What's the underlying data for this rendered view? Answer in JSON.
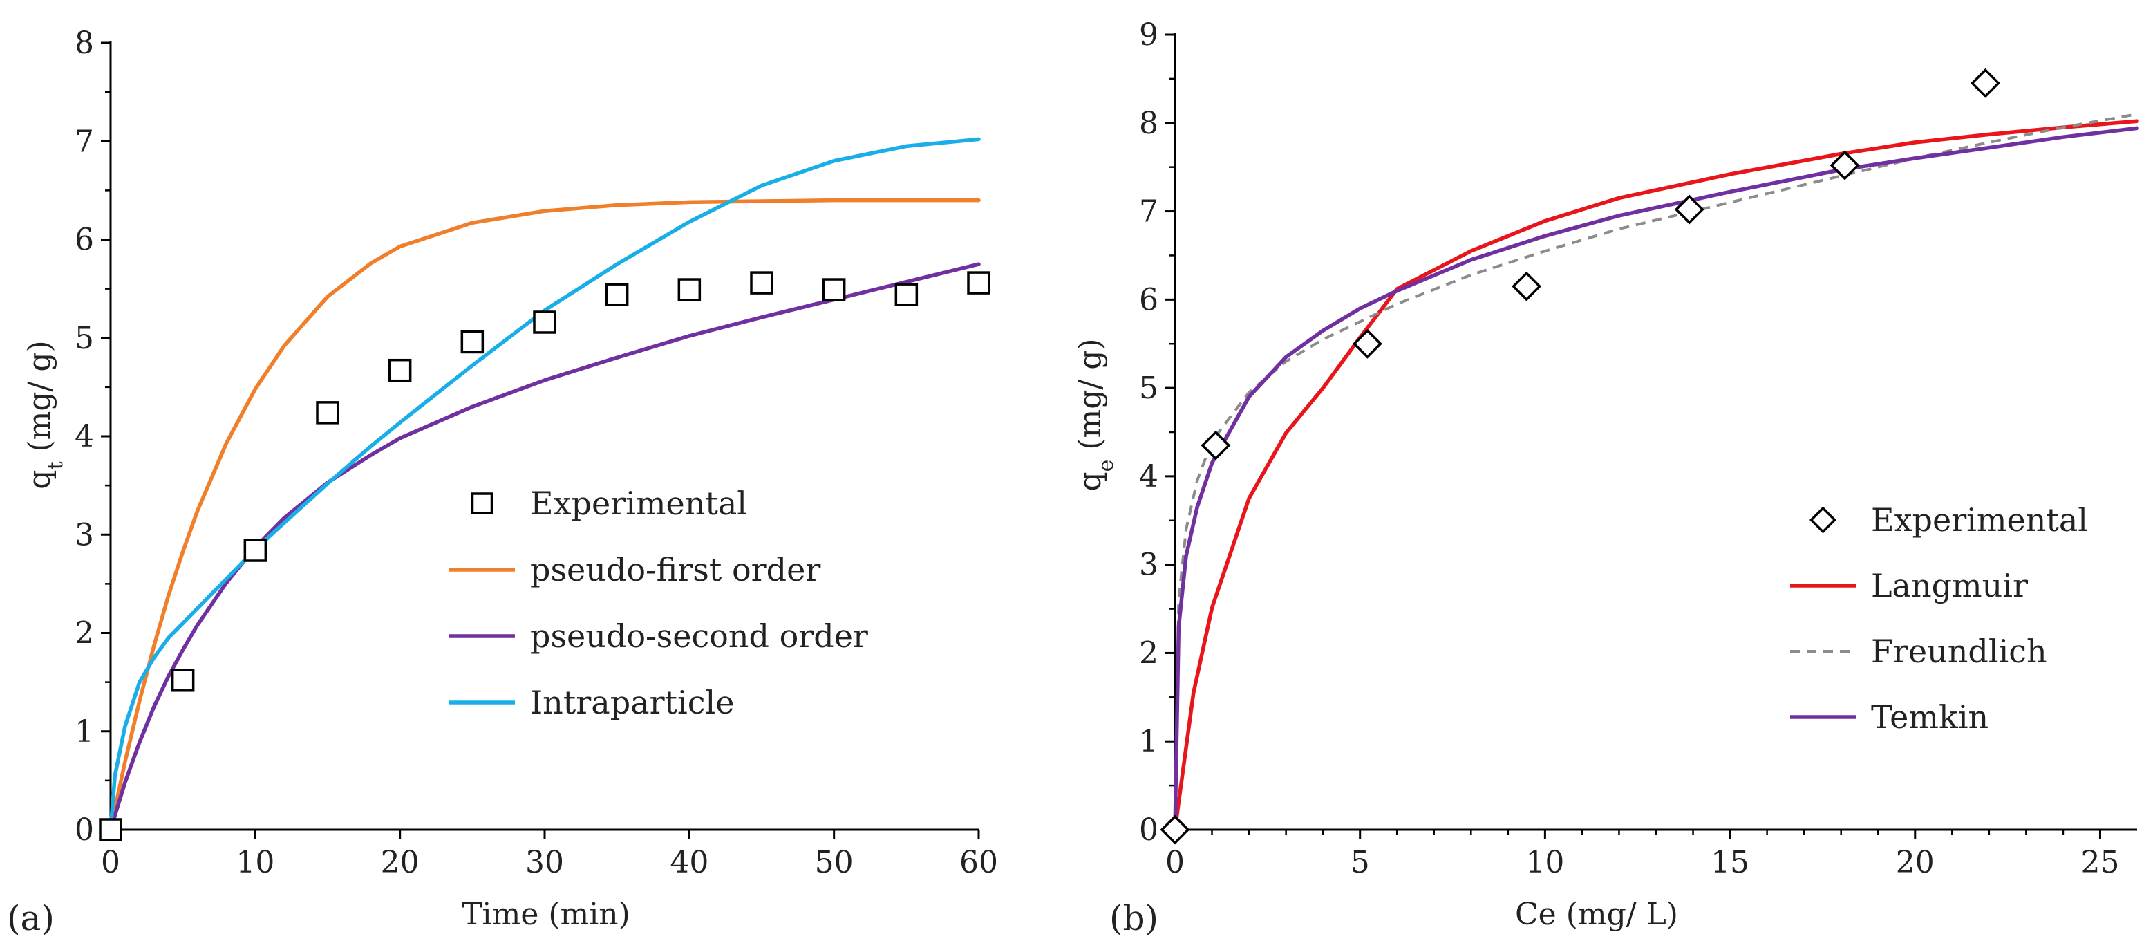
{
  "chart_data": [
    {
      "type": "scatter+line",
      "panel_label": "(a)",
      "xlabel": "Time (min)",
      "ylabel": {
        "base": "q",
        "sub": "t",
        "unit": " (mg/ g)"
      },
      "xlim": [
        0,
        60
      ],
      "ylim": [
        0,
        8
      ],
      "xticks": [
        0,
        10,
        20,
        30,
        40,
        50,
        60
      ],
      "yticks": [
        0,
        1,
        2,
        3,
        4,
        5,
        6,
        7,
        8
      ],
      "legend_position": "center-right",
      "scatter": {
        "name": "Experimental",
        "marker": "square",
        "x": [
          0,
          5,
          10,
          15,
          20,
          25,
          30,
          35,
          40,
          45,
          50,
          55,
          60
        ],
        "y": [
          0,
          1.52,
          2.84,
          4.24,
          4.67,
          4.96,
          5.16,
          5.44,
          5.49,
          5.56,
          5.49,
          5.44,
          5.56
        ]
      },
      "series": [
        {
          "name": "pseudo-first order",
          "color": "#F07F2C",
          "dash": "",
          "x": [
            0,
            1,
            2,
            3,
            4,
            5,
            6,
            8,
            10,
            12,
            15,
            18,
            20,
            25,
            30,
            35,
            40,
            45,
            50,
            55,
            60
          ],
          "y": [
            0,
            0.69,
            1.31,
            1.87,
            2.38,
            2.83,
            3.24,
            3.93,
            4.48,
            4.92,
            5.42,
            5.76,
            5.93,
            6.17,
            6.29,
            6.35,
            6.38,
            6.39,
            6.4,
            6.4,
            6.4
          ]
        },
        {
          "name": "pseudo-second order",
          "color": "#7030A0",
          "dash": "",
          "x": [
            0,
            1,
            2,
            3,
            4,
            5,
            6,
            8,
            10,
            12,
            15,
            18,
            20,
            25,
            30,
            35,
            40,
            45,
            50,
            55,
            60
          ],
          "y": [
            0,
            0.48,
            0.89,
            1.25,
            1.56,
            1.83,
            2.08,
            2.51,
            2.87,
            3.17,
            3.53,
            3.81,
            3.98,
            4.3,
            4.57,
            4.8,
            5.02,
            5.21,
            5.39,
            5.57,
            5.75
          ]
        },
        {
          "name": "Intraparticle",
          "color": "#1AAEE8",
          "dash": "",
          "x": [
            0,
            0.3,
            1,
            2,
            3,
            4,
            5,
            6,
            8,
            10,
            12,
            15,
            18,
            20,
            25,
            30,
            35,
            40,
            45,
            50,
            55,
            60
          ],
          "y": [
            0,
            0.55,
            1.05,
            1.5,
            1.75,
            1.95,
            2.1,
            2.25,
            2.55,
            2.85,
            3.12,
            3.52,
            3.9,
            4.14,
            4.72,
            5.28,
            5.75,
            6.18,
            6.55,
            6.8,
            6.95,
            7.02
          ]
        }
      ]
    },
    {
      "type": "scatter+line",
      "panel_label": "(b)",
      "xlabel": "Ce (mg/ L)",
      "ylabel": {
        "base": "q",
        "sub": "e",
        "unit": " (mg/ g)"
      },
      "xlim": [
        0,
        26
      ],
      "ylim": [
        0,
        9
      ],
      "xticks": [
        0,
        5,
        10,
        15,
        20,
        25
      ],
      "yticks": [
        0,
        1,
        2,
        3,
        4,
        5,
        6,
        7,
        8,
        9
      ],
      "legend_position": "right",
      "scatter": {
        "name": "Experimental",
        "marker": "diamond",
        "x": [
          0,
          1.1,
          5.2,
          9.5,
          13.9,
          18.1,
          21.9
        ],
        "y": [
          0,
          4.35,
          5.5,
          6.15,
          7.02,
          7.52,
          8.45
        ]
      },
      "series": [
        {
          "name": "Langmuir",
          "color": "#E8151B",
          "dash": "",
          "x": [
            0,
            0.5,
            1,
            2,
            3,
            4,
            5,
            6,
            8,
            10,
            12,
            15,
            18,
            20,
            22,
            24,
            26
          ],
          "y": [
            0,
            1.55,
            2.51,
            3.75,
            4.49,
            5.0,
            5.57,
            6.12,
            6.55,
            6.89,
            7.15,
            7.42,
            7.65,
            7.78,
            7.87,
            7.95,
            8.02
          ]
        },
        {
          "name": "Freundlich",
          "color": "#8C8C8C",
          "dash": "14 10",
          "x": [
            0,
            0.1,
            0.3,
            0.6,
            1,
            2,
            3,
            4,
            5,
            6,
            8,
            10,
            12,
            15,
            18,
            20,
            22,
            24,
            26
          ],
          "y": [
            0,
            2.6,
            3.4,
            3.95,
            4.4,
            4.95,
            5.3,
            5.55,
            5.75,
            5.95,
            6.28,
            6.55,
            6.8,
            7.1,
            7.4,
            7.6,
            7.78,
            7.95,
            8.1
          ]
        },
        {
          "name": "Temkin",
          "color": "#7030A0",
          "dash": "",
          "x": [
            0,
            0.1,
            0.3,
            0.6,
            1,
            2,
            3,
            4,
            5,
            6,
            8,
            10,
            12,
            15,
            18,
            20,
            22,
            24,
            26
          ],
          "y": [
            0,
            2.3,
            3.1,
            3.65,
            4.15,
            4.9,
            5.35,
            5.65,
            5.9,
            6.1,
            6.45,
            6.72,
            6.95,
            7.22,
            7.47,
            7.6,
            7.72,
            7.84,
            7.94
          ]
        }
      ]
    }
  ]
}
